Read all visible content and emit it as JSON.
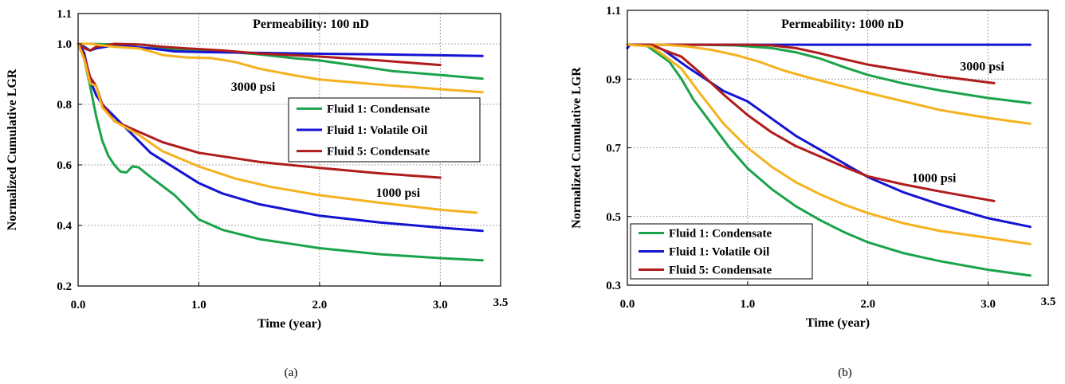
{
  "chart_data": [
    {
      "type": "line",
      "panel_caption": "(a)",
      "annotation_title": "Permeability: 100 nD",
      "xlabel": "Time (year)",
      "ylabel": "Normalized  Cumulative  LGR",
      "xlim": [
        0,
        3.5
      ],
      "ylim": [
        0.2,
        1.1
      ],
      "x_ticks": [
        "0.0",
        "1.0",
        "2.0",
        "3.0",
        "3.5"
      ],
      "y_ticks": [
        "0.2",
        "0.4",
        "0.6",
        "0.8",
        "1.0",
        "1.1"
      ],
      "grid": true,
      "legend_position": "center-right",
      "legend": [
        {
          "label": "Fluid 1: Condensate",
          "color": "#1aa34a"
        },
        {
          "label": "Fluid 1: Volatile Oil",
          "color": "#1414d2"
        },
        {
          "label": "Fluid 5: Condensate",
          "color": "#b01c1c"
        }
      ],
      "annotations": [
        {
          "text": "3000 psi",
          "x": 1.45,
          "y": 0.845
        },
        {
          "text": "1000 psi",
          "x": 2.65,
          "y": 0.495
        }
      ],
      "series": [
        {
          "color": "#1aa34a",
          "group": "3000 psi",
          "points": [
            [
              0,
              1.0
            ],
            [
              0.1,
              1.0
            ],
            [
              0.3,
              0.998
            ],
            [
              0.55,
              0.997
            ],
            [
              0.7,
              0.985
            ],
            [
              0.9,
              0.98
            ],
            [
              1.2,
              0.975
            ],
            [
              1.5,
              0.965
            ],
            [
              1.8,
              0.952
            ],
            [
              2.0,
              0.945
            ],
            [
              2.3,
              0.928
            ],
            [
              2.6,
              0.91
            ],
            [
              3.0,
              0.897
            ],
            [
              3.35,
              0.885
            ]
          ]
        },
        {
          "color": "#1414d2",
          "group": "3000 psi",
          "points": [
            [
              0,
              1.0
            ],
            [
              0.05,
              0.99
            ],
            [
              0.1,
              0.978
            ],
            [
              0.15,
              0.985
            ],
            [
              0.3,
              0.995
            ],
            [
              0.6,
              0.985
            ],
            [
              0.8,
              0.975
            ],
            [
              1.0,
              0.973
            ],
            [
              1.5,
              0.97
            ],
            [
              2.0,
              0.967
            ],
            [
              2.5,
              0.965
            ],
            [
              3.0,
              0.962
            ],
            [
              3.35,
              0.96
            ]
          ]
        },
        {
          "color": "#b01c1c",
          "group": "3000 psi",
          "points": [
            [
              0,
              1.0
            ],
            [
              0.05,
              0.985
            ],
            [
              0.1,
              0.978
            ],
            [
              0.15,
              0.99
            ],
            [
              0.3,
              1.0
            ],
            [
              0.5,
              0.998
            ],
            [
              0.7,
              0.99
            ],
            [
              0.9,
              0.985
            ],
            [
              1.2,
              0.978
            ],
            [
              1.5,
              0.968
            ],
            [
              2.0,
              0.958
            ],
            [
              2.5,
              0.945
            ],
            [
              3.0,
              0.93
            ]
          ]
        },
        {
          "color": "#f5b21e",
          "group": "3000 psi",
          "points": [
            [
              0,
              1.0
            ],
            [
              0.1,
              1.0
            ],
            [
              0.3,
              0.99
            ],
            [
              0.5,
              0.985
            ],
            [
              0.6,
              0.975
            ],
            [
              0.7,
              0.963
            ],
            [
              0.9,
              0.955
            ],
            [
              1.1,
              0.953
            ],
            [
              1.3,
              0.94
            ],
            [
              1.5,
              0.918
            ],
            [
              1.8,
              0.895
            ],
            [
              2.0,
              0.882
            ],
            [
              2.5,
              0.865
            ],
            [
              3.0,
              0.85
            ],
            [
              3.35,
              0.84
            ]
          ]
        },
        {
          "color": "#1aa34a",
          "group": "1000 psi",
          "points": [
            [
              0,
              1.0
            ],
            [
              0.05,
              0.95
            ],
            [
              0.1,
              0.86
            ],
            [
              0.15,
              0.76
            ],
            [
              0.2,
              0.68
            ],
            [
              0.25,
              0.63
            ],
            [
              0.3,
              0.6
            ],
            [
              0.35,
              0.578
            ],
            [
              0.4,
              0.575
            ],
            [
              0.45,
              0.595
            ],
            [
              0.5,
              0.592
            ],
            [
              0.6,
              0.56
            ],
            [
              0.8,
              0.5
            ],
            [
              1.0,
              0.42
            ],
            [
              1.2,
              0.385
            ],
            [
              1.5,
              0.355
            ],
            [
              2.0,
              0.325
            ],
            [
              2.5,
              0.305
            ],
            [
              3.0,
              0.292
            ],
            [
              3.35,
              0.285
            ]
          ]
        },
        {
          "color": "#1414d2",
          "group": "1000 psi",
          "points": [
            [
              0,
              1.0
            ],
            [
              0.05,
              0.97
            ],
            [
              0.1,
              0.88
            ],
            [
              0.15,
              0.83
            ],
            [
              0.2,
              0.8
            ],
            [
              0.3,
              0.76
            ],
            [
              0.4,
              0.72
            ],
            [
              0.5,
              0.68
            ],
            [
              0.6,
              0.64
            ],
            [
              0.8,
              0.59
            ],
            [
              1.0,
              0.54
            ],
            [
              1.2,
              0.505
            ],
            [
              1.5,
              0.47
            ],
            [
              2.0,
              0.432
            ],
            [
              2.5,
              0.41
            ],
            [
              3.0,
              0.393
            ],
            [
              3.35,
              0.382
            ]
          ]
        },
        {
          "color": "#b01c1c",
          "group": "1000 psi",
          "points": [
            [
              0,
              1.0
            ],
            [
              0.05,
              0.96
            ],
            [
              0.1,
              0.89
            ],
            [
              0.15,
              0.86
            ],
            [
              0.2,
              0.8
            ],
            [
              0.3,
              0.745
            ],
            [
              0.5,
              0.71
            ],
            [
              0.7,
              0.675
            ],
            [
              1.0,
              0.64
            ],
            [
              1.5,
              0.61
            ],
            [
              2.0,
              0.59
            ],
            [
              2.5,
              0.572
            ],
            [
              3.0,
              0.558
            ]
          ]
        },
        {
          "color": "#f5b21e",
          "group": "1000 psi",
          "points": [
            [
              0,
              1.0
            ],
            [
              0.05,
              0.95
            ],
            [
              0.1,
              0.87
            ],
            [
              0.15,
              0.86
            ],
            [
              0.2,
              0.79
            ],
            [
              0.3,
              0.745
            ],
            [
              0.5,
              0.7
            ],
            [
              0.7,
              0.645
            ],
            [
              1.0,
              0.595
            ],
            [
              1.3,
              0.555
            ],
            [
              1.6,
              0.527
            ],
            [
              2.0,
              0.5
            ],
            [
              2.5,
              0.475
            ],
            [
              3.0,
              0.452
            ],
            [
              3.3,
              0.442
            ]
          ]
        }
      ]
    },
    {
      "type": "line",
      "panel_caption": "(b)",
      "annotation_title": "Permeability: 1000 nD",
      "xlabel": "Time (year)",
      "ylabel": "Normalized  Cumulative  LGR",
      "xlim": [
        0,
        3.5
      ],
      "ylim": [
        0.3,
        1.1
      ],
      "x_ticks": [
        "0.0",
        "1.0",
        "2.0",
        "3.0",
        "3.5"
      ],
      "y_ticks": [
        "0.3",
        "0.5",
        "0.7",
        "0.9",
        "1.1"
      ],
      "grid": true,
      "legend_position": "bottom-left",
      "legend": [
        {
          "label": "Fluid 1: Condensate",
          "color": "#1aa34a"
        },
        {
          "label": "Fluid 1: Volatile Oil",
          "color": "#1414d2"
        },
        {
          "label": "Fluid 5: Condensate",
          "color": "#b01c1c"
        }
      ],
      "annotations": [
        {
          "text": "3000 psi",
          "x": 2.95,
          "y": 0.925
        },
        {
          "text": "1000 psi",
          "x": 2.55,
          "y": 0.6
        }
      ],
      "series": [
        {
          "color": "#1aa34a",
          "group": "3000 psi",
          "points": [
            [
              0,
              1.0
            ],
            [
              0.3,
              1.0
            ],
            [
              0.6,
              1.0
            ],
            [
              0.9,
              0.998
            ],
            [
              1.2,
              0.99
            ],
            [
              1.4,
              0.978
            ],
            [
              1.6,
              0.96
            ],
            [
              1.8,
              0.935
            ],
            [
              2.0,
              0.912
            ],
            [
              2.3,
              0.887
            ],
            [
              2.6,
              0.867
            ],
            [
              3.0,
              0.845
            ],
            [
              3.35,
              0.83
            ]
          ]
        },
        {
          "color": "#1414d2",
          "group": "3000 psi",
          "points": [
            [
              0,
              0.99
            ],
            [
              0.02,
              1.0
            ],
            [
              0.5,
              1.0
            ],
            [
              1.0,
              1.0
            ],
            [
              1.5,
              1.0
            ],
            [
              2.0,
              1.0
            ],
            [
              2.5,
              1.0
            ],
            [
              3.0,
              1.0
            ],
            [
              3.35,
              1.0
            ]
          ]
        },
        {
          "color": "#b01c1c",
          "group": "3000 psi",
          "points": [
            [
              0,
              1.0
            ],
            [
              0.5,
              1.0
            ],
            [
              1.0,
              1.0
            ],
            [
              1.2,
              0.998
            ],
            [
              1.4,
              0.99
            ],
            [
              1.6,
              0.975
            ],
            [
              1.8,
              0.958
            ],
            [
              2.0,
              0.942
            ],
            [
              2.3,
              0.925
            ],
            [
              2.6,
              0.908
            ],
            [
              3.05,
              0.888
            ]
          ]
        },
        {
          "color": "#f5b21e",
          "group": "3000 psi",
          "points": [
            [
              0,
              1.0
            ],
            [
              0.3,
              1.0
            ],
            [
              0.5,
              0.995
            ],
            [
              0.7,
              0.985
            ],
            [
              0.9,
              0.97
            ],
            [
              1.1,
              0.95
            ],
            [
              1.3,
              0.925
            ],
            [
              1.5,
              0.905
            ],
            [
              1.8,
              0.878
            ],
            [
              2.0,
              0.86
            ],
            [
              2.3,
              0.835
            ],
            [
              2.6,
              0.81
            ],
            [
              3.0,
              0.787
            ],
            [
              3.35,
              0.77
            ]
          ]
        },
        {
          "color": "#1aa34a",
          "group": "1000 psi",
          "points": [
            [
              0,
              1.0
            ],
            [
              0.15,
              1.0
            ],
            [
              0.25,
              0.975
            ],
            [
              0.35,
              0.95
            ],
            [
              0.45,
              0.9
            ],
            [
              0.55,
              0.84
            ],
            [
              0.7,
              0.77
            ],
            [
              0.85,
              0.7
            ],
            [
              1.0,
              0.64
            ],
            [
              1.2,
              0.58
            ],
            [
              1.4,
              0.53
            ],
            [
              1.6,
              0.49
            ],
            [
              1.8,
              0.455
            ],
            [
              2.0,
              0.425
            ],
            [
              2.3,
              0.393
            ],
            [
              2.6,
              0.37
            ],
            [
              3.0,
              0.345
            ],
            [
              3.35,
              0.328
            ]
          ]
        },
        {
          "color": "#1414d2",
          "group": "1000 psi",
          "points": [
            [
              0,
              1.0
            ],
            [
              0.2,
              1.0
            ],
            [
              0.3,
              0.985
            ],
            [
              0.4,
              0.96
            ],
            [
              0.5,
              0.935
            ],
            [
              0.65,
              0.9
            ],
            [
              0.8,
              0.865
            ],
            [
              1.0,
              0.835
            ],
            [
              1.2,
              0.785
            ],
            [
              1.4,
              0.735
            ],
            [
              1.6,
              0.695
            ],
            [
              1.8,
              0.655
            ],
            [
              2.0,
              0.615
            ],
            [
              2.3,
              0.57
            ],
            [
              2.6,
              0.535
            ],
            [
              3.0,
              0.495
            ],
            [
              3.35,
              0.47
            ]
          ]
        },
        {
          "color": "#b01c1c",
          "group": "1000 psi",
          "points": [
            [
              0,
              1.0
            ],
            [
              0.2,
              1.0
            ],
            [
              0.3,
              0.985
            ],
            [
              0.45,
              0.965
            ],
            [
              0.6,
              0.92
            ],
            [
              0.8,
              0.855
            ],
            [
              1.0,
              0.795
            ],
            [
              1.2,
              0.745
            ],
            [
              1.4,
              0.705
            ],
            [
              1.6,
              0.675
            ],
            [
              1.8,
              0.645
            ],
            [
              2.0,
              0.617
            ],
            [
              2.3,
              0.593
            ],
            [
              2.6,
              0.573
            ],
            [
              3.05,
              0.545
            ]
          ]
        },
        {
          "color": "#f5b21e",
          "group": "1000 psi",
          "points": [
            [
              0,
              1.0
            ],
            [
              0.2,
              0.995
            ],
            [
              0.3,
              0.97
            ],
            [
              0.45,
              0.93
            ],
            [
              0.6,
              0.86
            ],
            [
              0.8,
              0.77
            ],
            [
              1.0,
              0.7
            ],
            [
              1.2,
              0.645
            ],
            [
              1.4,
              0.6
            ],
            [
              1.6,
              0.565
            ],
            [
              1.8,
              0.535
            ],
            [
              2.0,
              0.51
            ],
            [
              2.3,
              0.48
            ],
            [
              2.6,
              0.458
            ],
            [
              3.0,
              0.438
            ],
            [
              3.35,
              0.42
            ]
          ]
        }
      ]
    }
  ]
}
